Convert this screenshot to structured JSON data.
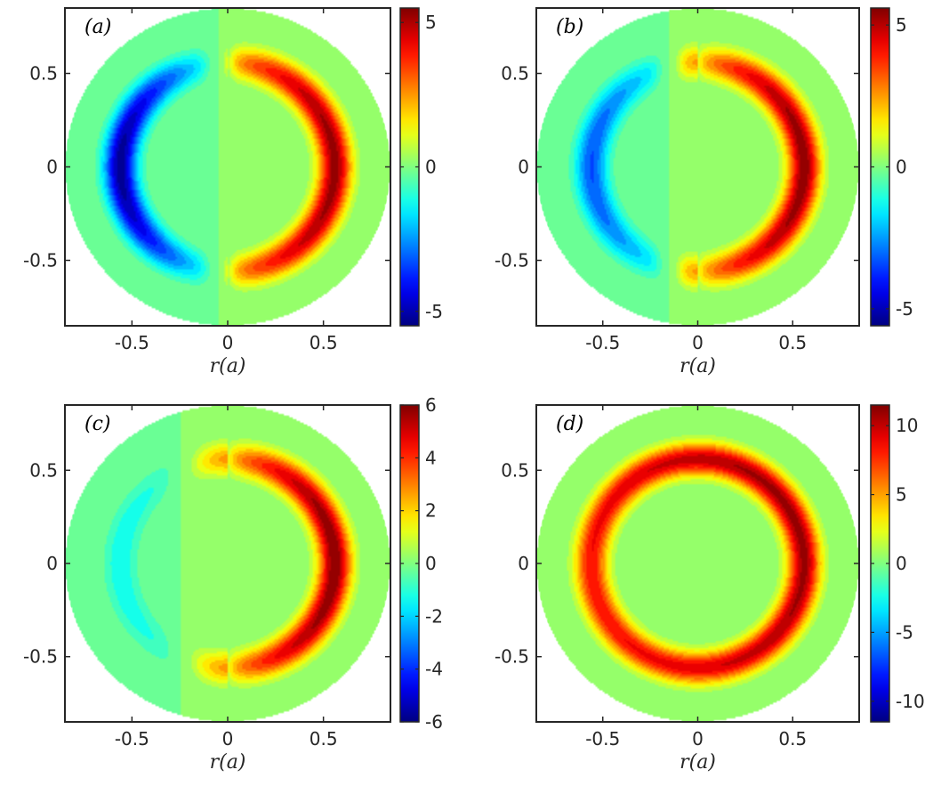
{
  "chart_data": [
    {
      "type": "heatmap",
      "panel_label": "(a)",
      "xlabel": "r(a)",
      "xlim": [
        -0.85,
        0.85
      ],
      "ylim": [
        -0.85,
        0.85
      ],
      "xticks": [
        "-0.5",
        "0",
        "0.5"
      ],
      "yticks": [
        "0.5",
        "0",
        "-0.5"
      ],
      "domain": "disk of radius 0.85",
      "ring": {
        "radius": 0.56,
        "width": 0.085
      },
      "field": {
        "shape": "crescent",
        "positive_peak": 5.3,
        "negative_peak": -5.3,
        "centre_peak_direction": "+x",
        "gap_near_x": -0.05
      },
      "colorbar": {
        "range": [
          -5.5,
          5.5
        ],
        "ticks": [
          "5",
          "0",
          "-5"
        ]
      }
    },
    {
      "type": "heatmap",
      "panel_label": "(b)",
      "xlabel": "r(a)",
      "xlim": [
        -0.85,
        0.85
      ],
      "ylim": [
        -0.85,
        0.85
      ],
      "xticks": [
        "-0.5",
        "0",
        "0.5"
      ],
      "yticks": [
        "0.5",
        "0",
        "-0.5"
      ],
      "domain": "disk of radius 0.85",
      "ring": {
        "radius": 0.56,
        "width": 0.085
      },
      "field": {
        "shape": "crescent",
        "positive_peak": 5.5,
        "negative_peak": -3.3,
        "centre_peak_direction": "+x",
        "gap_near_x": -0.15
      },
      "colorbar": {
        "range": [
          -5.6,
          5.6
        ],
        "ticks": [
          "5",
          "0",
          "-5"
        ]
      }
    },
    {
      "type": "heatmap",
      "panel_label": "(c)",
      "xlabel": "r(a)",
      "xlim": [
        -0.85,
        0.85
      ],
      "ylim": [
        -0.85,
        0.85
      ],
      "xticks": [
        "-0.5",
        "0",
        "0.5"
      ],
      "yticks": [
        "0.5",
        "0",
        "-0.5"
      ],
      "domain": "disk of radius 0.85",
      "ring": {
        "radius": 0.56,
        "width": 0.085
      },
      "field": {
        "shape": "crescent",
        "positive_peak": 6.0,
        "negative_peak": -1.4,
        "centre_peak_direction": "+x",
        "gap_near_x": -0.25
      },
      "colorbar": {
        "range": [
          -6,
          6
        ],
        "ticks": [
          "6",
          "4",
          "2",
          "0",
          "-2",
          "-4",
          "-6"
        ]
      }
    },
    {
      "type": "heatmap",
      "panel_label": "(d)",
      "xlabel": "r(a)",
      "xlim": [
        -0.85,
        0.85
      ],
      "ylim": [
        -0.85,
        0.85
      ],
      "xticks": [
        "-0.5",
        "0",
        "0.5"
      ],
      "yticks": [
        "0.5",
        "0",
        "-0.5"
      ],
      "domain": "disk of radius 0.85",
      "ring": {
        "radius": 0.56,
        "width": 0.085
      },
      "field": {
        "shape": "full-ring",
        "positive_peak": 11.0,
        "min_on_ring": 8.5,
        "centre_peak_direction": "+x"
      },
      "colorbar": {
        "range": [
          -11.5,
          11.5
        ],
        "ticks": [
          "10",
          "5",
          "0",
          "-5",
          "-10"
        ]
      }
    }
  ]
}
